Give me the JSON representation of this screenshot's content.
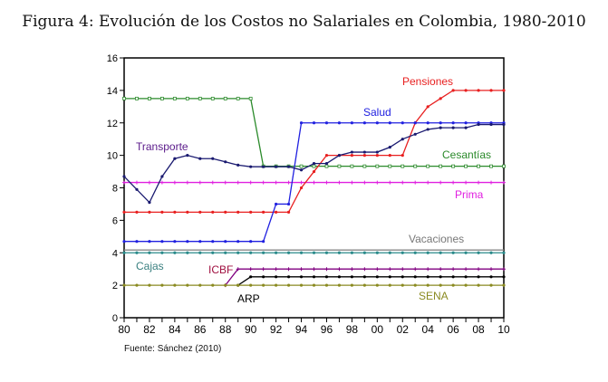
{
  "chart_data": {
    "type": "line",
    "title": "Figura 4: Evolución de los Costos no Salariales en Colombia, 1980-2010",
    "source": "Fuente: Sánchez (2010)",
    "xlabel": "",
    "ylabel": "",
    "x": [
      1980,
      1981,
      1982,
      1983,
      1984,
      1985,
      1986,
      1987,
      1988,
      1989,
      1990,
      1991,
      1992,
      1993,
      1994,
      1995,
      1996,
      1997,
      1998,
      1999,
      2000,
      2001,
      2002,
      2003,
      2004,
      2005,
      2006,
      2007,
      2008,
      2009,
      2010
    ],
    "xticks": [
      "80",
      "82",
      "84",
      "86",
      "88",
      "90",
      "92",
      "94",
      "96",
      "98",
      "00",
      "02",
      "04",
      "06",
      "08",
      "10"
    ],
    "ylim": [
      0,
      16
    ],
    "yticks": [
      "0",
      "2",
      "4",
      "6",
      "8",
      "10",
      "12",
      "14",
      "16"
    ],
    "grid": false,
    "series": [
      {
        "name": "Cesantías",
        "color": "#2a8a2a",
        "marker": "square",
        "values": [
          13.5,
          13.5,
          13.5,
          13.5,
          13.5,
          13.5,
          13.5,
          13.5,
          13.5,
          13.5,
          13.5,
          9.33,
          9.33,
          9.33,
          9.33,
          9.33,
          9.33,
          9.33,
          9.33,
          9.33,
          9.33,
          9.33,
          9.33,
          9.33,
          9.33,
          9.33,
          9.33,
          9.33,
          9.33,
          9.33,
          9.33
        ]
      },
      {
        "name": "Prima",
        "color": "#e020e0",
        "marker": "plus",
        "values": [
          8.33,
          8.33,
          8.33,
          8.33,
          8.33,
          8.33,
          8.33,
          8.33,
          8.33,
          8.33,
          8.33,
          8.33,
          8.33,
          8.33,
          8.33,
          8.33,
          8.33,
          8.33,
          8.33,
          8.33,
          8.33,
          8.33,
          8.33,
          8.33,
          8.33,
          8.33,
          8.33,
          8.33,
          8.33,
          8.33,
          8.33
        ]
      },
      {
        "name": "Pensiones",
        "color": "#e82020",
        "marker": "dot",
        "values": [
          6.5,
          6.5,
          6.5,
          6.5,
          6.5,
          6.5,
          6.5,
          6.5,
          6.5,
          6.5,
          6.5,
          6.5,
          6.5,
          6.5,
          8,
          9,
          10,
          10,
          10,
          10,
          10,
          10,
          10,
          12,
          13,
          13.5,
          14,
          14,
          14,
          14,
          14
        ]
      },
      {
        "name": "Salud",
        "color": "#2020e0",
        "marker": "dot",
        "values": [
          4.7,
          4.7,
          4.7,
          4.7,
          4.7,
          4.7,
          4.7,
          4.7,
          4.7,
          4.7,
          4.7,
          4.7,
          7,
          7,
          12,
          12,
          12,
          12,
          12,
          12,
          12,
          12,
          12,
          12,
          12,
          12,
          12,
          12,
          12,
          12,
          12
        ]
      },
      {
        "name": "Transporte",
        "color": "#1a1a70",
        "marker": "dot",
        "values": [
          8.7,
          7.9,
          7.1,
          8.7,
          9.8,
          10.0,
          9.8,
          9.8,
          9.6,
          9.4,
          9.3,
          9.3,
          9.3,
          9.3,
          9.1,
          9.5,
          9.5,
          10.0,
          10.2,
          10.2,
          10.2,
          10.5,
          11.0,
          11.3,
          11.6,
          11.7,
          11.7,
          11.7,
          11.9,
          11.9,
          11.9
        ]
      },
      {
        "name": "Vacaciones",
        "color": "#888888",
        "marker": "none",
        "values": [
          4.17,
          4.17,
          4.17,
          4.17,
          4.17,
          4.17,
          4.17,
          4.17,
          4.17,
          4.17,
          4.17,
          4.17,
          4.17,
          4.17,
          4.17,
          4.17,
          4.17,
          4.17,
          4.17,
          4.17,
          4.17,
          4.17,
          4.17,
          4.17,
          4.17,
          4.17,
          4.17,
          4.17,
          4.17,
          4.17,
          4.17
        ]
      },
      {
        "name": "Cajas",
        "color": "#2a8a8a",
        "marker": "dot",
        "values": [
          4,
          4,
          4,
          4,
          4,
          4,
          4,
          4,
          4,
          4,
          4,
          4,
          4,
          4,
          4,
          4,
          4,
          4,
          4,
          4,
          4,
          4,
          4,
          4,
          4,
          4,
          4,
          4,
          4,
          4,
          4
        ]
      },
      {
        "name": "ICBF",
        "color": "#800080",
        "marker": "plus",
        "values": [
          null,
          null,
          null,
          null,
          null,
          null,
          null,
          null,
          2,
          3,
          3,
          3,
          3,
          3,
          3,
          3,
          3,
          3,
          3,
          3,
          3,
          3,
          3,
          3,
          3,
          3,
          3,
          3,
          3,
          3,
          3
        ]
      },
      {
        "name": "ARP",
        "color": "#000000",
        "marker": "dot",
        "values": [
          null,
          null,
          null,
          null,
          null,
          null,
          null,
          null,
          null,
          2,
          2.52,
          2.52,
          2.52,
          2.52,
          2.52,
          2.52,
          2.52,
          2.52,
          2.52,
          2.52,
          2.52,
          2.52,
          2.52,
          2.52,
          2.52,
          2.52,
          2.52,
          2.52,
          2.52,
          2.52,
          2.52
        ]
      },
      {
        "name": "SENA",
        "color": "#8a8a20",
        "marker": "dot",
        "values": [
          2,
          2,
          2,
          2,
          2,
          2,
          2,
          2,
          2,
          2,
          2,
          2,
          2,
          2,
          2,
          2,
          2,
          2,
          2,
          2,
          2,
          2,
          2,
          2,
          2,
          2,
          2,
          2,
          2,
          2,
          2
        ]
      }
    ]
  }
}
